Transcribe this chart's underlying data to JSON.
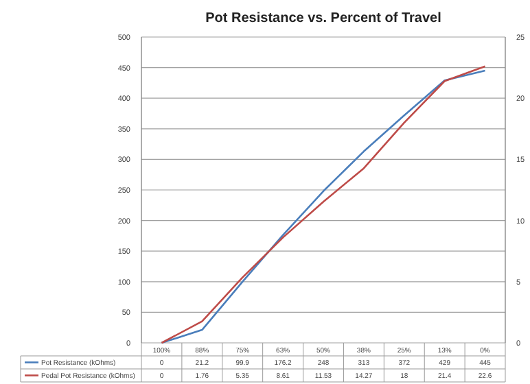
{
  "chart_data": {
    "type": "line",
    "title": "Pot Resistance  vs. Percent of Travel",
    "categories": [
      "100%",
      "88%",
      "75%",
      "63%",
      "50%",
      "38%",
      "25%",
      "13%",
      "0%"
    ],
    "series": [
      {
        "name": "Pot Resistance (kOhms)",
        "color": "#4a7ebb",
        "values": [
          0,
          21.2,
          99.9,
          176.2,
          248,
          313,
          372,
          429,
          445
        ]
      },
      {
        "name": "Pedal Pot Resistance (kOhms)",
        "color": "#be4b48",
        "values": [
          0,
          1.76,
          5.35,
          8.61,
          11.53,
          14.27,
          18,
          21.4,
          22.6
        ],
        "axis": "y2"
      }
    ],
    "ylim": [
      0,
      500
    ],
    "yticks": [
      0,
      50,
      100,
      150,
      200,
      250,
      300,
      350,
      400,
      450,
      500
    ],
    "y2lim": [
      0,
      25
    ],
    "y2ticks": [
      0,
      5,
      10,
      15,
      20,
      25
    ],
    "grid": "y",
    "legend": "bottom",
    "data_labels": true,
    "marker": "none",
    "line_style": "solid"
  }
}
